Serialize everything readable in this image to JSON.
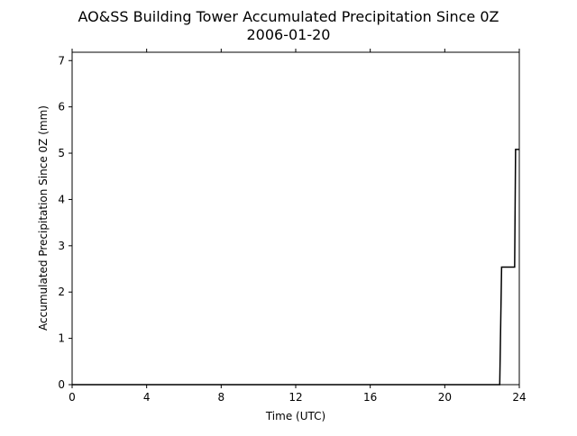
{
  "chart_data": {
    "type": "line",
    "title": "AO&SS Building Tower Accumulated Precipitation Since 0Z",
    "subtitle": "2006-01-20",
    "x_label": "Time (UTC)",
    "y_label": "Accumulated Precipitation Since 0Z (mm)",
    "x": [
      0,
      22.95,
      23.05,
      23.75,
      23.8,
      24
    ],
    "values": [
      0,
      0,
      2.54,
      2.54,
      5.08,
      5.08
    ],
    "color": "#000000",
    "xlim": [
      0,
      24
    ],
    "xticks": [
      0,
      4,
      8,
      12,
      16,
      20,
      24
    ],
    "ylim": [
      0,
      7.18
    ],
    "yticks": [
      0,
      1,
      2,
      3,
      4,
      5,
      6,
      7
    ],
    "grid": false
  }
}
